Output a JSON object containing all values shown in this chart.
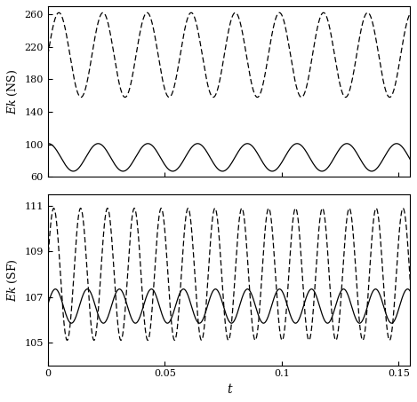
{
  "t_max": 0.155,
  "t_points": 5000,
  "ns_solid_mean": 84,
  "ns_solid_amp": 17,
  "ns_solid_freq": 47,
  "ns_solid_phase": 1.5,
  "ns_dashed_mean": 210,
  "ns_dashed_amp": 52,
  "ns_dashed_freq": 53,
  "ns_dashed_phase": 0.0,
  "ns_ylim": [
    60,
    270
  ],
  "ns_yticks": [
    60,
    100,
    140,
    180,
    220,
    260
  ],
  "sf_solid_mean": 106.6,
  "sf_solid_amp": 0.75,
  "sf_solid_freq": 73,
  "sf_solid_phase": 0.1,
  "sf_dashed_mean": 108.0,
  "sf_dashed_amp": 2.9,
  "sf_dashed_freq": 87,
  "sf_dashed_phase": 0.2,
  "sf_ylim": [
    104.0,
    111.5
  ],
  "sf_yticks": [
    105,
    107,
    109,
    111
  ],
  "xlabel": "t",
  "ylabel_top": "$Ek$ (NS)",
  "ylabel_bottom": "$Ek$ (SF)",
  "line_color": "#000000",
  "bg_color": "#ffffff",
  "xticks": [
    0,
    0.05,
    0.1,
    0.15
  ],
  "xtick_labels": [
    "0",
    "0.05",
    "0.1",
    "0.15"
  ]
}
